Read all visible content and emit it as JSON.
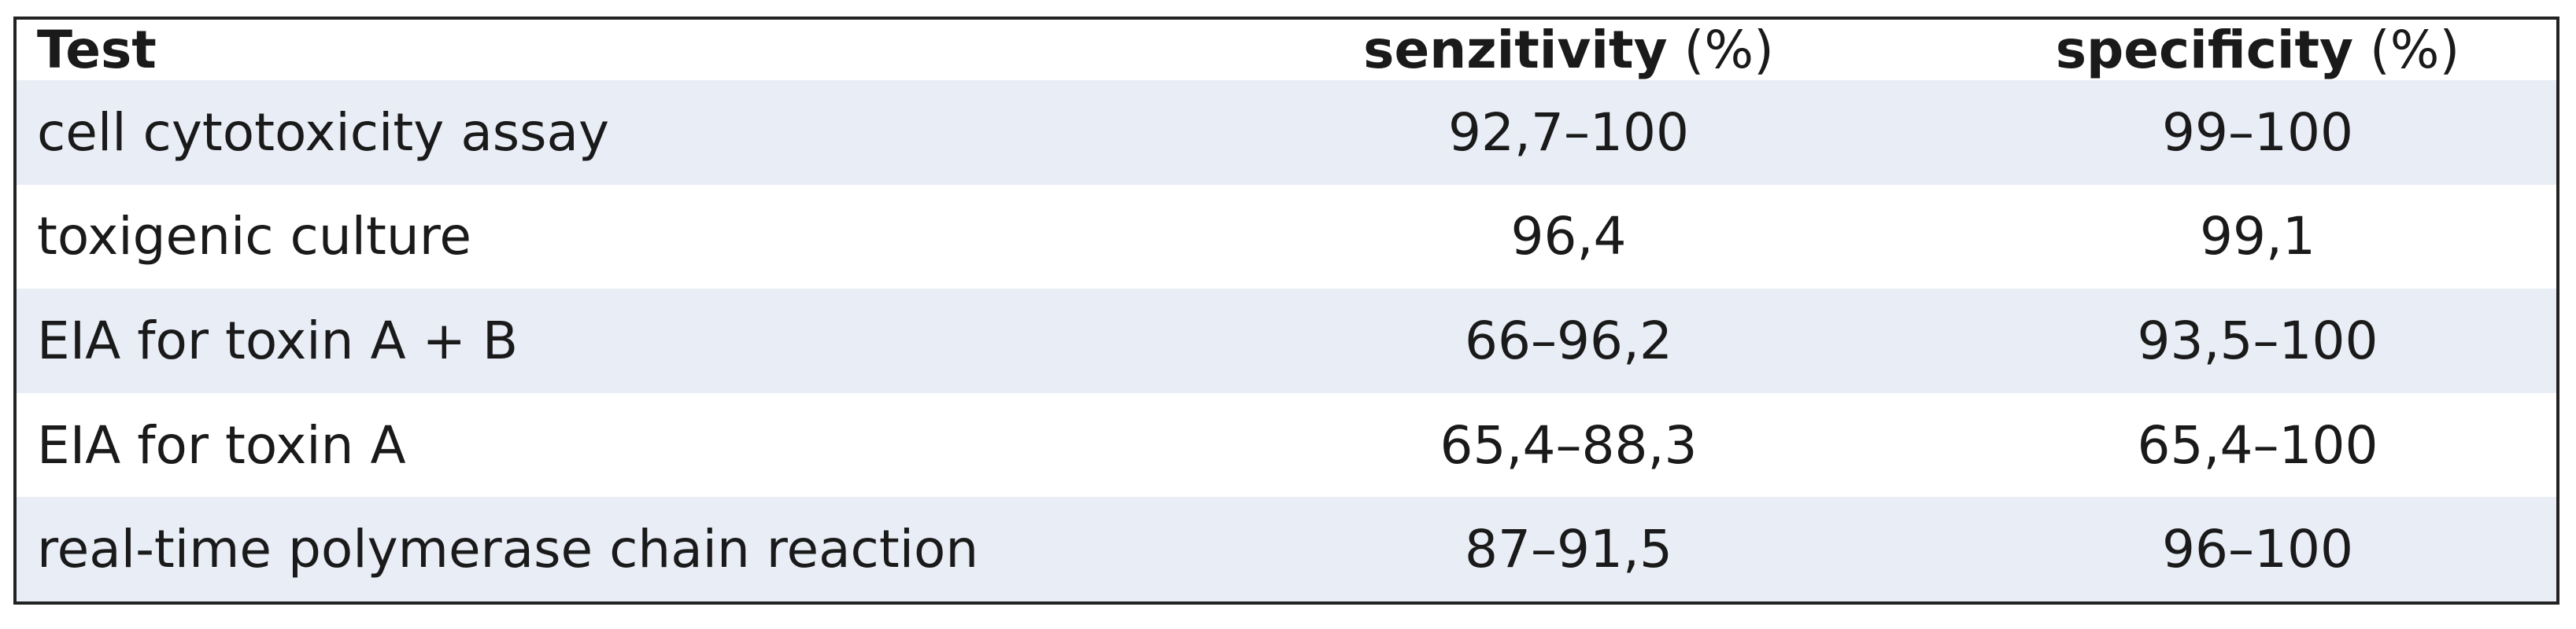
{
  "table": {
    "header": [
      {
        "bold": "Test"
      },
      {
        "bold": "senzitivity",
        "unit": "(%)"
      },
      {
        "bold": "specificity",
        "unit": "(%)"
      }
    ],
    "rows": [
      [
        "cell cytotoxicity assay",
        "92,7–100",
        "99–100"
      ],
      [
        "toxigenic culture",
        "96,4",
        "99,1"
      ],
      [
        "EIA for toxin A + B",
        "66–96,2",
        "93,5–100"
      ],
      [
        "EIA for toxin A",
        "65,4–88,3",
        "65,4–100"
      ],
      [
        "real-time polymerase chain reaction",
        "87–91,5",
        "96–100"
      ]
    ]
  }
}
